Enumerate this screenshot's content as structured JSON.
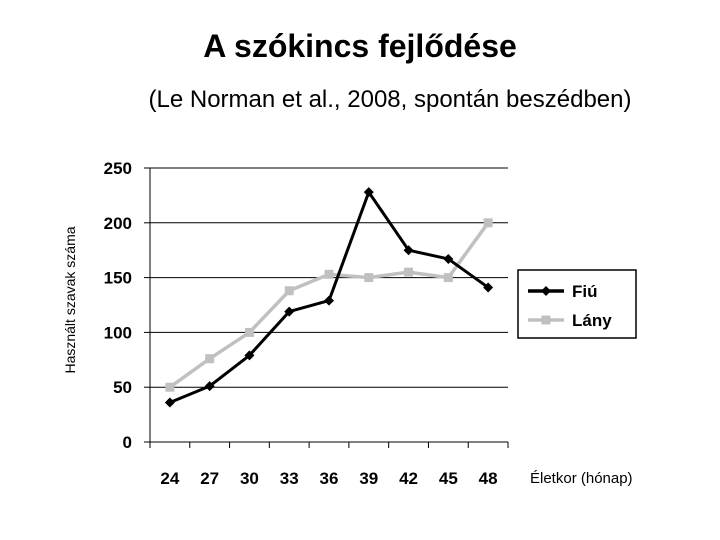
{
  "title": "A szókincs fejlődése",
  "subtitle": "(Le Norman et al., 2008, spontán beszédben)",
  "chart_data": {
    "type": "line",
    "ylabel": "Használt szavak száma",
    "xlabel": "Életkor (hónap)",
    "categories": [
      "24",
      "27",
      "30",
      "33",
      "36",
      "39",
      "42",
      "45",
      "48"
    ],
    "ylim": [
      0,
      250
    ],
    "yticks": [
      "0",
      "50",
      "100",
      "150",
      "200",
      "250"
    ],
    "grid": true,
    "legend": "right",
    "series": [
      {
        "name": "Fiú",
        "color": "#000000",
        "marker": "diamond",
        "values": [
          36,
          51,
          79,
          119,
          129,
          228,
          175,
          167,
          141
        ]
      },
      {
        "name": "Lány",
        "color": "#c0c0c0",
        "marker": "square",
        "values": [
          50,
          76,
          100,
          138,
          153,
          150,
          155,
          150,
          200
        ]
      }
    ]
  }
}
